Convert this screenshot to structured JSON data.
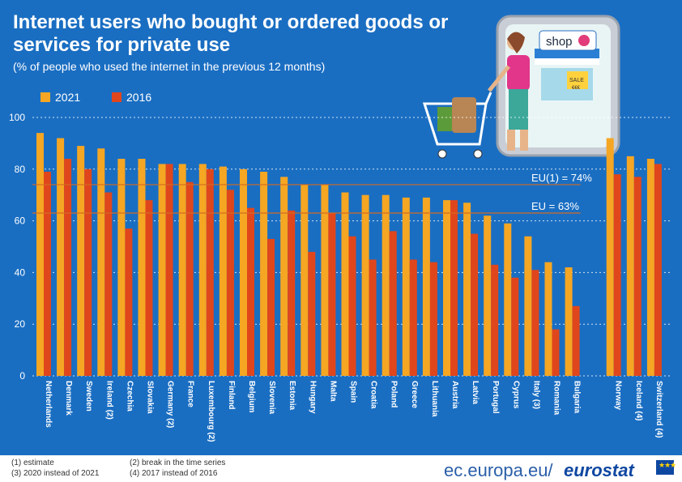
{
  "header": {
    "title": "Internet users who bought or ordered goods or services for private use",
    "subtitle": "(% of people who used the internet in the previous 12 months)"
  },
  "colors": {
    "y2021": "#f5a623",
    "y2016": "#e0461c",
    "background": "#1a6ec2",
    "eu_line": "#d36b22"
  },
  "illustration": {
    "shop_sign": "shop",
    "sale_tag": "SALE",
    "price_tag": "€€€"
  },
  "footnotes": {
    "n1": "(1) estimate",
    "n2": "(2) break in the time series",
    "n3": "(3) 2020 instead of 2021",
    "n4": "(4) 2017 instead of 2016"
  },
  "source": "ec.europa.eu/",
  "brand": "eurostat",
  "chart_data": {
    "type": "bar",
    "categories": [
      "Netherlands",
      "Denmark",
      "Sweden",
      "Ireland (2)",
      "Czechia",
      "Slovakia",
      "Germany (2)",
      "France",
      "Luxembourg (2)",
      "Finland",
      "Belgium",
      "Slovenia",
      "Estonia",
      "Hungary",
      "Malta",
      "Spain",
      "Croatia",
      "Poland",
      "Greece",
      "Lithuania",
      "Austria",
      "Latvia",
      "Portugal",
      "Cyprus",
      "Italy (3)",
      "Romania",
      "Bulgaria",
      "Norway",
      "Iceland (4)",
      "Switzerland (4)"
    ],
    "series": [
      {
        "name": "2021",
        "values": [
          94,
          92,
          89,
          88,
          84,
          84,
          82,
          82,
          82,
          81,
          80,
          79,
          77,
          74,
          74,
          71,
          70,
          70,
          69,
          69,
          68,
          67,
          62,
          59,
          54,
          44,
          42,
          92,
          85,
          84
        ]
      },
      {
        "name": "2016",
        "values": [
          79,
          84,
          80,
          71,
          57,
          68,
          82,
          75,
          80,
          72,
          65,
          53,
          64,
          48,
          63,
          54,
          45,
          56,
          45,
          44,
          68,
          55,
          43,
          38,
          41,
          18,
          27,
          78,
          77,
          82
        ]
      }
    ],
    "ylim": [
      0,
      100
    ],
    "yticks": [
      0,
      20,
      40,
      60,
      80,
      100
    ],
    "grid": true,
    "legend_position": "top-left",
    "reference_lines": [
      {
        "label": "EU(1) = 74%",
        "value": 74
      },
      {
        "label": "EU = 63%",
        "value": 63
      }
    ]
  }
}
